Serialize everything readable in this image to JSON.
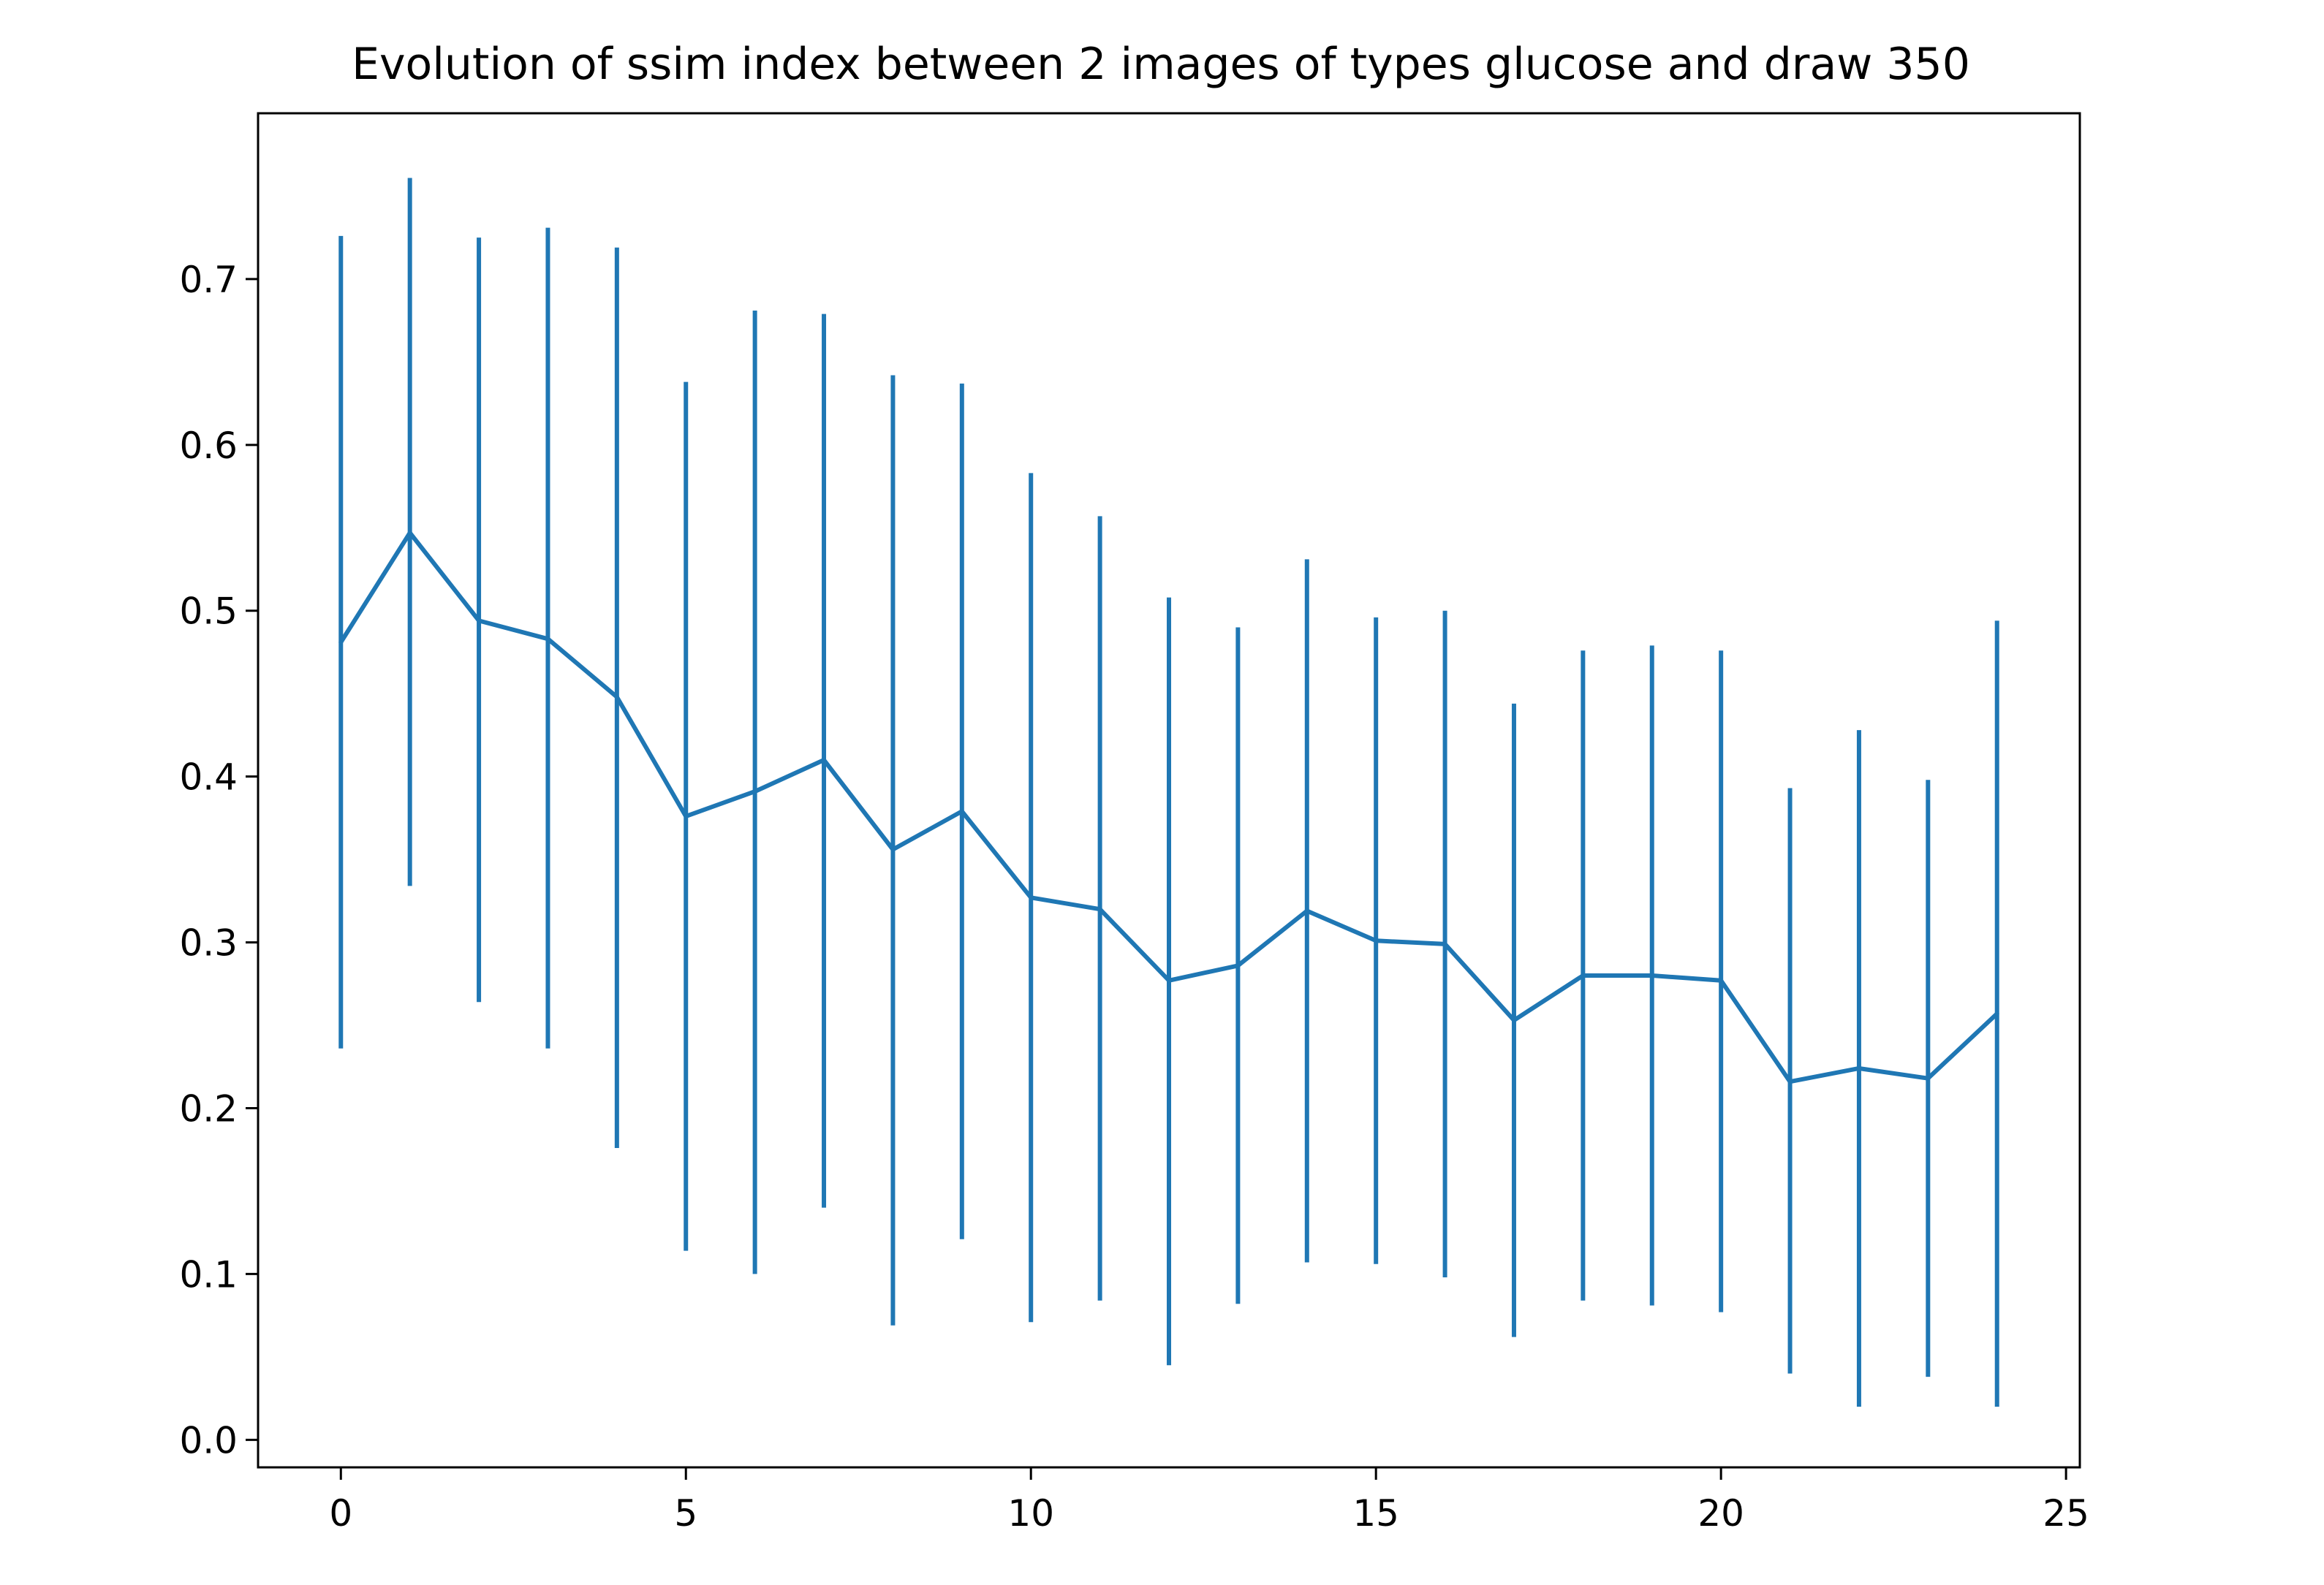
{
  "chart_data": {
    "type": "line",
    "title": "Evolution of ssim index between 2 images of types glucose and draw 350",
    "xlabel": "",
    "ylabel": "",
    "xlim": [
      -1.2,
      25.2
    ],
    "ylim": [
      -0.0166,
      0.8
    ],
    "xticks": [
      0,
      5,
      10,
      15,
      20,
      25
    ],
    "xtick_labels": [
      "0",
      "5",
      "10",
      "15",
      "20",
      "25"
    ],
    "yticks": [
      0.0,
      0.1,
      0.2,
      0.3,
      0.4,
      0.5,
      0.6,
      0.7
    ],
    "ytick_labels": [
      "0.0",
      "0.1",
      "0.2",
      "0.3",
      "0.4",
      "0.5",
      "0.6",
      "0.7"
    ],
    "grid": false,
    "color": "#1f77b4",
    "series": [
      {
        "name": "ssim",
        "x": [
          0,
          1,
          2,
          3,
          4,
          5,
          6,
          7,
          8,
          9,
          10,
          11,
          12,
          13,
          14,
          15,
          16,
          17,
          18,
          19,
          20,
          21,
          22,
          23,
          24
        ],
        "y": [
          0.481,
          0.547,
          0.494,
          0.483,
          0.448,
          0.376,
          0.391,
          0.41,
          0.356,
          0.379,
          0.327,
          0.32,
          0.277,
          0.286,
          0.319,
          0.301,
          0.299,
          0.253,
          0.28,
          0.28,
          0.277,
          0.216,
          0.224,
          0.218,
          0.257
        ],
        "y_low": [
          0.236,
          0.334,
          0.264,
          0.236,
          0.176,
          0.114,
          0.1,
          0.14,
          0.069,
          0.121,
          0.071,
          0.084,
          0.045,
          0.082,
          0.107,
          0.106,
          0.098,
          0.062,
          0.084,
          0.081,
          0.077,
          0.04,
          0.02,
          0.038,
          0.02
        ],
        "y_high": [
          0.726,
          0.761,
          0.725,
          0.731,
          0.719,
          0.638,
          0.681,
          0.679,
          0.642,
          0.637,
          0.583,
          0.557,
          0.508,
          0.49,
          0.531,
          0.496,
          0.5,
          0.444,
          0.476,
          0.479,
          0.476,
          0.393,
          0.428,
          0.398,
          0.494
        ]
      }
    ]
  }
}
